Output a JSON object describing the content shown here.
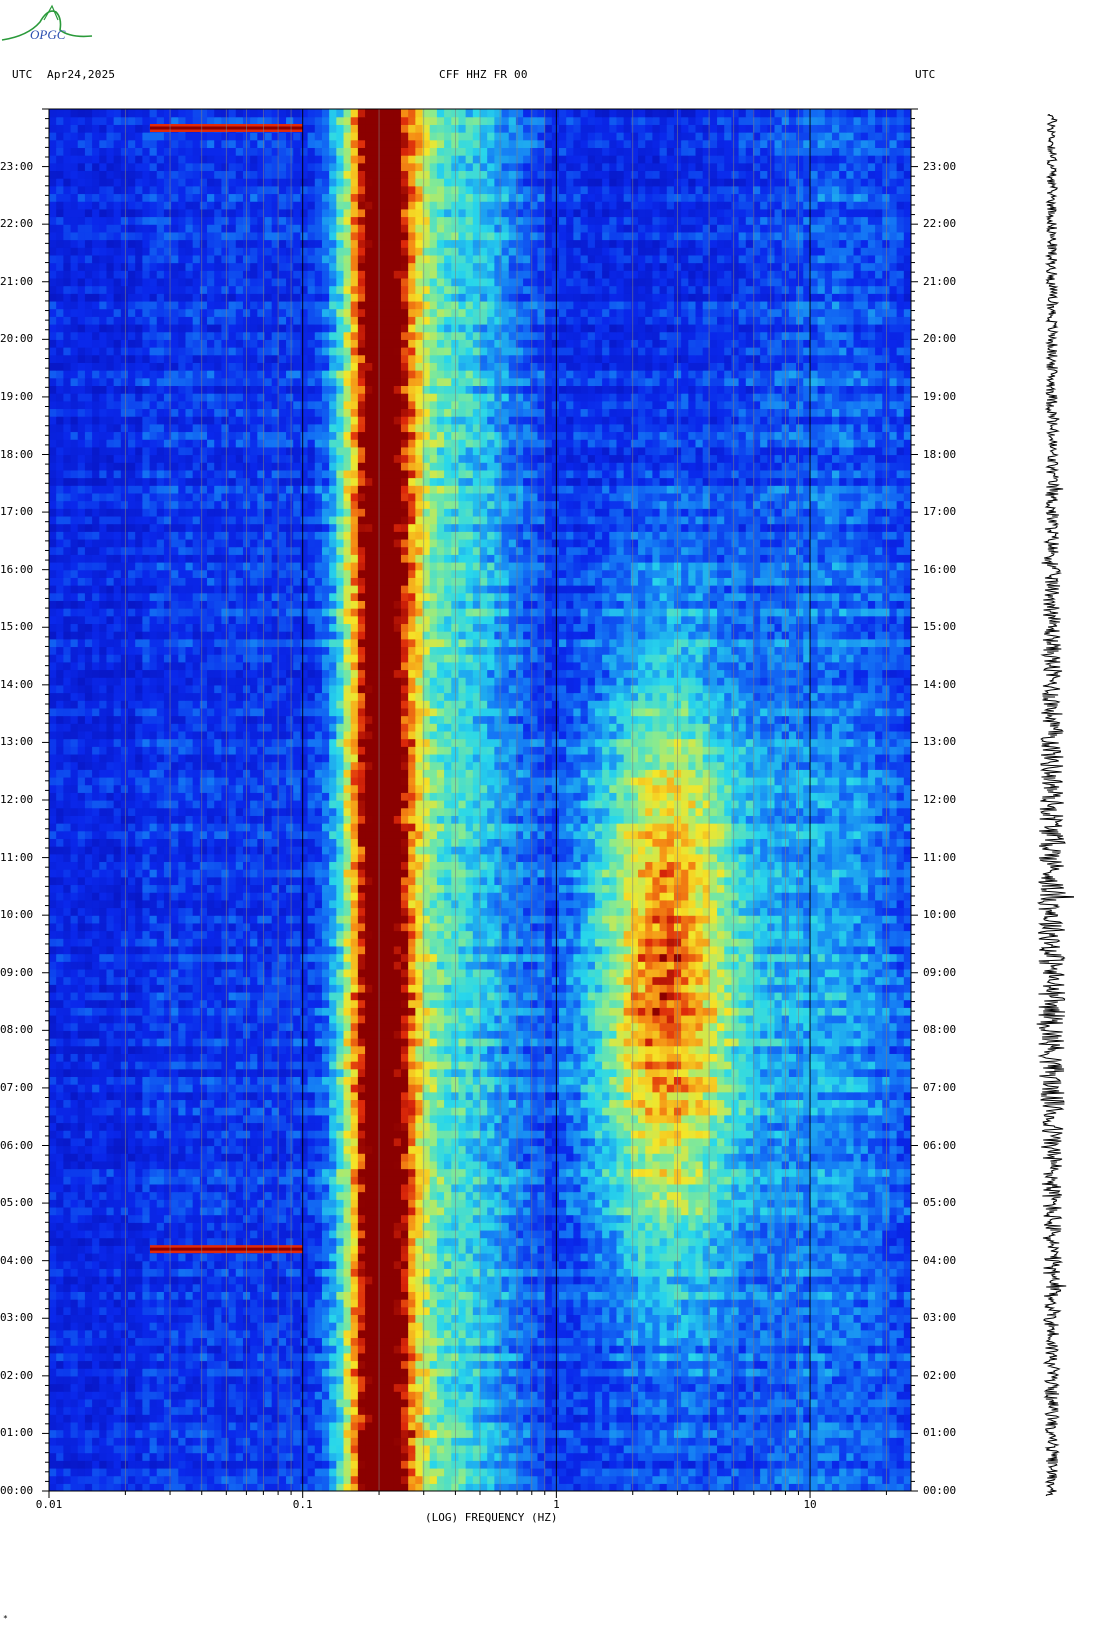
{
  "logo_text": "OPGC",
  "header": {
    "left_tz": "UTC",
    "date": "Apr24,2025",
    "station": "CFF HHZ FR 00",
    "right_tz": "UTC"
  },
  "footer_mark": "*",
  "colors": {
    "low": "#0a1fe0",
    "mid": "#2bd9f0",
    "high_mid": "#f5e62a",
    "high": "#e22a0a",
    "peak": "#8b0000",
    "grid": "#808080",
    "logo_green": "#2a9a3a"
  },
  "chart_data": {
    "type": "heatmap",
    "title": "CFF HHZ FR 00",
    "xlabel": "(LOG) FREQUENCY (HZ)",
    "x_scale": "log",
    "xlim": [
      0.01,
      25
    ],
    "x_ticks": [
      "0.01",
      "0.1",
      "1",
      "10"
    ],
    "x_tick_values": [
      0.01,
      0.1,
      1,
      10
    ],
    "ylim_hours": [
      0,
      24
    ],
    "y_ticks": [
      "00:00",
      "01:00",
      "02:00",
      "03:00",
      "04:00",
      "05:00",
      "06:00",
      "07:00",
      "08:00",
      "09:00",
      "10:00",
      "11:00",
      "12:00",
      "13:00",
      "14:00",
      "15:00",
      "16:00",
      "17:00",
      "18:00",
      "19:00",
      "20:00",
      "21:00",
      "22:00",
      "23:00"
    ],
    "y_tick_hours": [
      0,
      1,
      2,
      3,
      4,
      5,
      6,
      7,
      8,
      9,
      10,
      11,
      12,
      13,
      14,
      15,
      16,
      17,
      18,
      19,
      20,
      21,
      22,
      23
    ],
    "microseism_band_hz": [
      0.14,
      0.3
    ],
    "microseism_peak_hz": 0.2,
    "cultural_noise_band_hz": [
      1.5,
      6
    ],
    "cultural_noise_hours": [
      4,
      16
    ],
    "transient_events": [
      {
        "hour": 23.67,
        "fmin": 0.025,
        "fmax": 0.1
      },
      {
        "hour": 4.2,
        "fmin": 0.025,
        "fmax": 0.1
      }
    ]
  }
}
